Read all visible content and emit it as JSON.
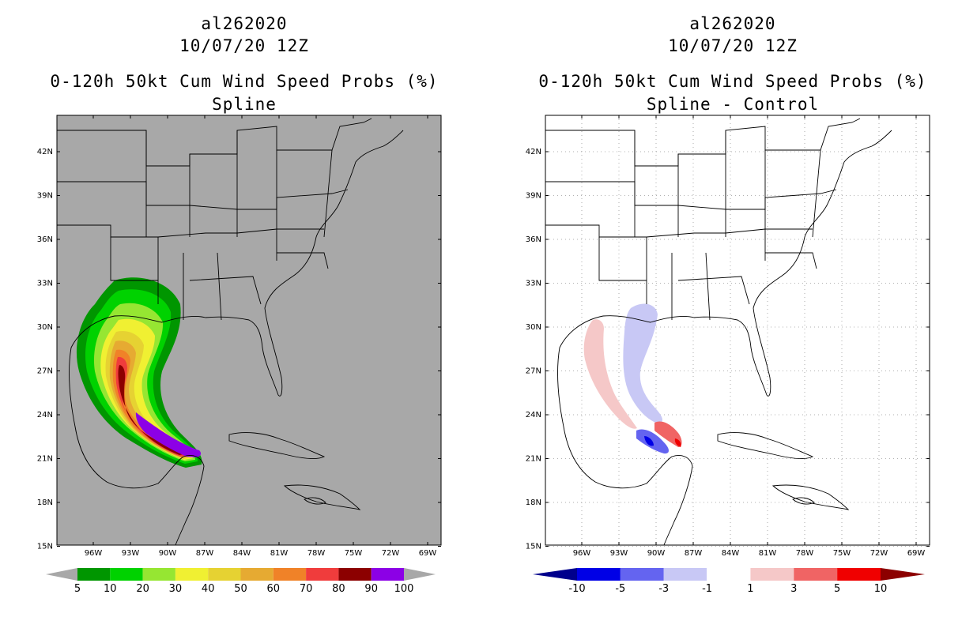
{
  "panels": [
    {
      "storm": "al262020",
      "datetime": "10/07/20 12Z",
      "product": "0-120h 50kt Cum Wind Speed Probs (%)",
      "subtitle": "Spline",
      "background": "#a8a8a8",
      "lat_labels": [
        "42N",
        "39N",
        "36N",
        "33N",
        "30N",
        "27N",
        "24N",
        "21N",
        "18N",
        "15N"
      ],
      "lon_labels": [
        "96W",
        "93W",
        "90W",
        "87W",
        "84W",
        "81W",
        "78W",
        "75W",
        "72W",
        "69W"
      ],
      "colorbar": {
        "colors": [
          "#009600",
          "#00d200",
          "#96e632",
          "#f0f032",
          "#e6d232",
          "#e6aa32",
          "#f08228",
          "#f03c3c",
          "#8c0000",
          "#8c00e6"
        ],
        "labels": [
          "5",
          "10",
          "20",
          "30",
          "40",
          "50",
          "60",
          "70",
          "80",
          "90",
          "100"
        ],
        "end_color": "#a8a8a8"
      }
    },
    {
      "storm": "al262020",
      "datetime": "10/07/20 12Z",
      "product": "0-120h 50kt Cum Wind Speed Probs (%)",
      "subtitle": "Spline - Control",
      "background": "#ffffff",
      "lat_labels": [
        "42N",
        "39N",
        "36N",
        "33N",
        "30N",
        "27N",
        "24N",
        "21N",
        "18N",
        "15N"
      ],
      "lon_labels": [
        "96W",
        "93W",
        "90W",
        "87W",
        "84W",
        "81W",
        "78W",
        "75W",
        "72W",
        "69W"
      ],
      "colorbar": {
        "colors": [
          "#0000e6",
          "#6464f0",
          "#c8c8f5",
          "#ffffff",
          "#f5c8c8",
          "#f06464",
          "#f00000"
        ],
        "labels": [
          "-10",
          "-5",
          "-3",
          "-1",
          "1",
          "3",
          "5",
          "10"
        ],
        "left_end_color": "#00008c",
        "right_end_color": "#8c0000"
      }
    }
  ]
}
